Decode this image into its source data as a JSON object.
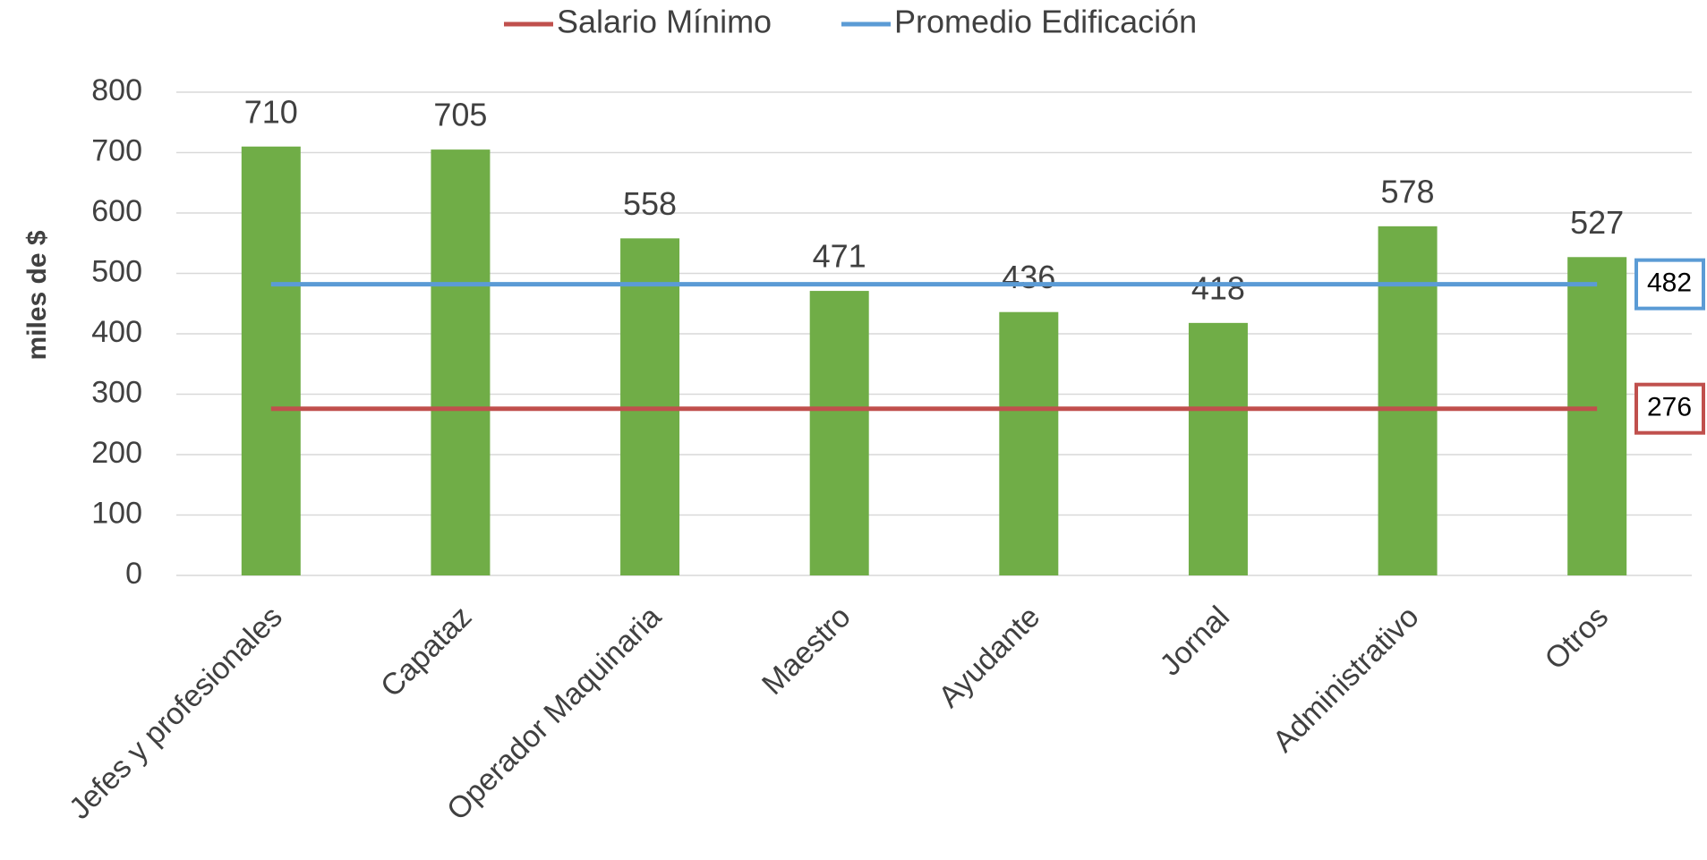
{
  "chart_data": {
    "type": "bar",
    "y_label": "miles de $",
    "categories": [
      "Jefes y profesionales",
      "Capataz",
      "Operador Maquinaria",
      "Maestro",
      "Ayudante",
      "Jornal",
      "Administrativo",
      "Otros"
    ],
    "values": [
      710,
      705,
      558,
      471,
      436,
      418,
      578,
      527
    ],
    "color": "#70ad47",
    "series": [
      {
        "name": "Salario Mínimo",
        "type": "line",
        "color": "#c0504d",
        "values": [
          276,
          276,
          276,
          276,
          276,
          276,
          276,
          276
        ]
      },
      {
        "name": "Promedio Edificación",
        "type": "line",
        "color": "#5b9bd5",
        "values": [
          482,
          482,
          482,
          482,
          482,
          482,
          482,
          482
        ]
      }
    ],
    "ylim": [
      0,
      800
    ],
    "yticks": [
      0,
      100,
      200,
      300,
      400,
      500,
      600,
      700,
      800
    ],
    "grid": true,
    "legend": "top"
  }
}
